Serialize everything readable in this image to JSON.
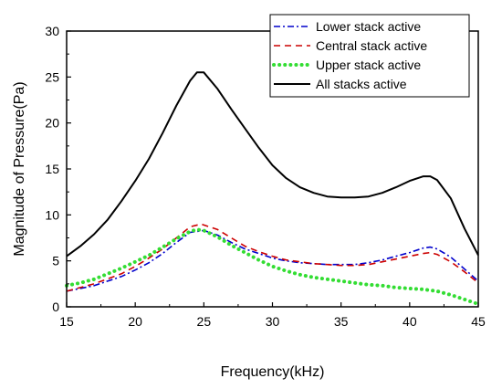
{
  "chart_data": {
    "type": "line",
    "xlabel": "Frequency(kHz)",
    "ylabel": "Magnitude of Pressure(Pa)",
    "xlim": [
      15,
      45
    ],
    "ylim": [
      0,
      30
    ],
    "xticks": [
      15,
      20,
      25,
      30,
      35,
      40,
      45
    ],
    "yticks": [
      0,
      5,
      10,
      15,
      20,
      25,
      30
    ],
    "grid": false,
    "legend_position": "top-right",
    "series": [
      {
        "name": "Lower stack active",
        "color": "#0000cc",
        "dash": "dash-dot",
        "x": [
          15,
          17,
          19,
          20,
          21,
          22,
          23,
          24,
          25,
          26,
          27,
          28,
          29,
          30,
          31,
          32,
          33,
          34,
          35,
          36,
          37,
          38,
          39,
          40,
          41,
          41.5,
          42,
          43,
          44,
          45
        ],
        "y": [
          1.7,
          2.3,
          3.3,
          4.0,
          4.8,
          5.8,
          7.0,
          8.1,
          8.3,
          7.8,
          7.0,
          6.3,
          5.8,
          5.3,
          5.0,
          4.8,
          4.7,
          4.6,
          4.6,
          4.6,
          4.8,
          5.1,
          5.5,
          5.9,
          6.4,
          6.5,
          6.3,
          5.4,
          4.1,
          2.8
        ]
      },
      {
        "name": "Central stack active",
        "color": "#cc0000",
        "dash": "dashed",
        "x": [
          15,
          17,
          19,
          20,
          21,
          22,
          23,
          24,
          24.8,
          26,
          27,
          28,
          29,
          30,
          31,
          32,
          33,
          34,
          35,
          36,
          37,
          38,
          39,
          40,
          41,
          41.5,
          42,
          43,
          44,
          45
        ],
        "y": [
          1.7,
          2.5,
          3.6,
          4.4,
          5.3,
          6.3,
          7.5,
          8.7,
          9.0,
          8.4,
          7.5,
          6.6,
          6.0,
          5.5,
          5.1,
          4.9,
          4.7,
          4.6,
          4.5,
          4.5,
          4.6,
          4.9,
          5.2,
          5.5,
          5.8,
          5.9,
          5.7,
          4.9,
          3.8,
          2.6
        ]
      },
      {
        "name": "Upper stack active",
        "color": "#33dd33",
        "dash": "dotted",
        "x": [
          15,
          16,
          17,
          18,
          19,
          20,
          21,
          22,
          23,
          24,
          24.5,
          25,
          26,
          27,
          28,
          29,
          30,
          31,
          32,
          33,
          34,
          35,
          36,
          37,
          38,
          39,
          40,
          41,
          42,
          43,
          44,
          45
        ],
        "y": [
          2.3,
          2.6,
          3.0,
          3.6,
          4.2,
          4.9,
          5.6,
          6.5,
          7.4,
          8.2,
          8.4,
          8.3,
          7.6,
          6.7,
          5.9,
          5.1,
          4.4,
          3.9,
          3.5,
          3.2,
          3.0,
          2.8,
          2.6,
          2.4,
          2.3,
          2.1,
          2.0,
          1.9,
          1.7,
          1.3,
          0.8,
          0.3
        ]
      },
      {
        "name": "All stacks active",
        "color": "#000000",
        "dash": "solid",
        "x": [
          15,
          16,
          17,
          18,
          19,
          20,
          21,
          22,
          23,
          24,
          24.5,
          25,
          26,
          27,
          28,
          29,
          30,
          31,
          32,
          33,
          34,
          35,
          36,
          37,
          38,
          39,
          40,
          41,
          41.5,
          42,
          43,
          44,
          45
        ],
        "y": [
          5.5,
          6.6,
          7.9,
          9.5,
          11.5,
          13.7,
          16.1,
          18.9,
          21.9,
          24.6,
          25.5,
          25.5,
          23.7,
          21.5,
          19.4,
          17.3,
          15.4,
          14.0,
          13.0,
          12.4,
          12.0,
          11.9,
          11.9,
          12.0,
          12.4,
          13.0,
          13.7,
          14.2,
          14.2,
          13.8,
          11.8,
          8.5,
          5.6
        ]
      }
    ]
  }
}
